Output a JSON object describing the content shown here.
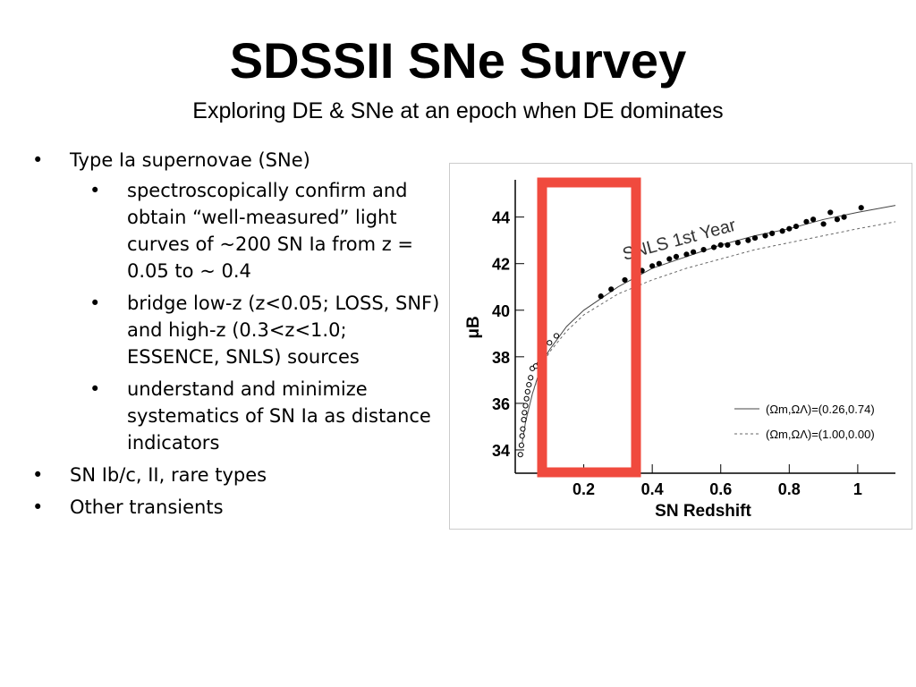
{
  "title": "SDSSII SNe Survey",
  "subtitle": "Exploring DE & SNe at an epoch when DE dominates",
  "bullets": [
    {
      "text": "Type Ia supernovae (SNe)",
      "sub": [
        "spectroscopically confirm and obtain “well-measured” light curves of ~200 SN Ia from z = 0.05 to ~ 0.4",
        "bridge low-z (z<0.05; LOSS, SNF) and high-z (0.3<z<1.0; ESSENCE, SNLS) sources",
        "understand and minimize systematics of SN Ia as distance indicators"
      ]
    },
    {
      "text": "SN Ib/c, II, rare types"
    },
    {
      "text": "Other transients"
    }
  ],
  "chart_data": {
    "type": "scatter",
    "xlabel": "SN Redshift",
    "ylabel": "μB",
    "annotation": "SNLS 1st Year",
    "xlim": [
      0,
      1.11
    ],
    "ylim": [
      33,
      45.6
    ],
    "xticks": [
      0.2,
      0.4,
      0.6,
      0.8,
      1
    ],
    "yticks": [
      34,
      36,
      38,
      40,
      42,
      44
    ],
    "series": [
      {
        "marker": "open",
        "color": "#000000",
        "x": [
          0.015,
          0.018,
          0.02,
          0.022,
          0.025,
          0.027,
          0.03,
          0.033,
          0.036,
          0.04,
          0.045,
          0.05,
          0.06,
          0.07,
          0.08,
          0.1,
          0.12
        ],
        "values": [
          33.8,
          34.2,
          34.6,
          34.9,
          35.3,
          35.6,
          35.9,
          36.2,
          36.5,
          36.8,
          37.1,
          37.5,
          37.6,
          37.7,
          38.0,
          38.6,
          38.9
        ]
      },
      {
        "marker": "filled",
        "color": "#000000",
        "x": [
          0.25,
          0.28,
          0.32,
          0.35,
          0.37,
          0.4,
          0.42,
          0.45,
          0.47,
          0.5,
          0.52,
          0.55,
          0.58,
          0.6,
          0.62,
          0.65,
          0.68,
          0.7,
          0.73,
          0.75,
          0.78,
          0.8,
          0.82,
          0.85,
          0.87,
          0.9,
          0.92,
          0.94,
          0.96,
          1.01
        ],
        "values": [
          40.6,
          40.9,
          41.3,
          41.6,
          41.7,
          41.9,
          42.0,
          42.2,
          42.3,
          42.4,
          42.5,
          42.6,
          42.7,
          42.8,
          42.8,
          42.9,
          43.0,
          43.1,
          43.2,
          43.3,
          43.4,
          43.5,
          43.6,
          43.8,
          43.9,
          43.7,
          44.2,
          43.9,
          44.0,
          44.4
        ]
      }
    ],
    "lines": [
      {
        "name": "(Ωm,ΩΛ)=(0.26,0.74)",
        "dashed": false,
        "color": "#444444",
        "x": [
          0.02,
          0.03,
          0.05,
          0.08,
          0.1,
          0.15,
          0.2,
          0.3,
          0.4,
          0.5,
          0.6,
          0.7,
          0.8,
          0.9,
          1.0,
          1.11
        ],
        "values": [
          34.3,
          35.2,
          36.4,
          37.8,
          38.3,
          39.3,
          40.0,
          41.0,
          41.8,
          42.3,
          42.8,
          43.2,
          43.5,
          43.9,
          44.2,
          44.5
        ]
      },
      {
        "name": "(Ωm,ΩΛ)=(1.00,0.00)",
        "dashed": true,
        "color": "#666666",
        "x": [
          0.02,
          0.03,
          0.05,
          0.08,
          0.1,
          0.15,
          0.2,
          0.3,
          0.4,
          0.5,
          0.6,
          0.7,
          0.8,
          0.9,
          1.0,
          1.11
        ],
        "values": [
          34.3,
          35.2,
          36.4,
          37.7,
          38.2,
          39.1,
          39.8,
          40.7,
          41.3,
          41.8,
          42.2,
          42.6,
          42.9,
          43.2,
          43.5,
          43.8
        ]
      }
    ]
  }
}
